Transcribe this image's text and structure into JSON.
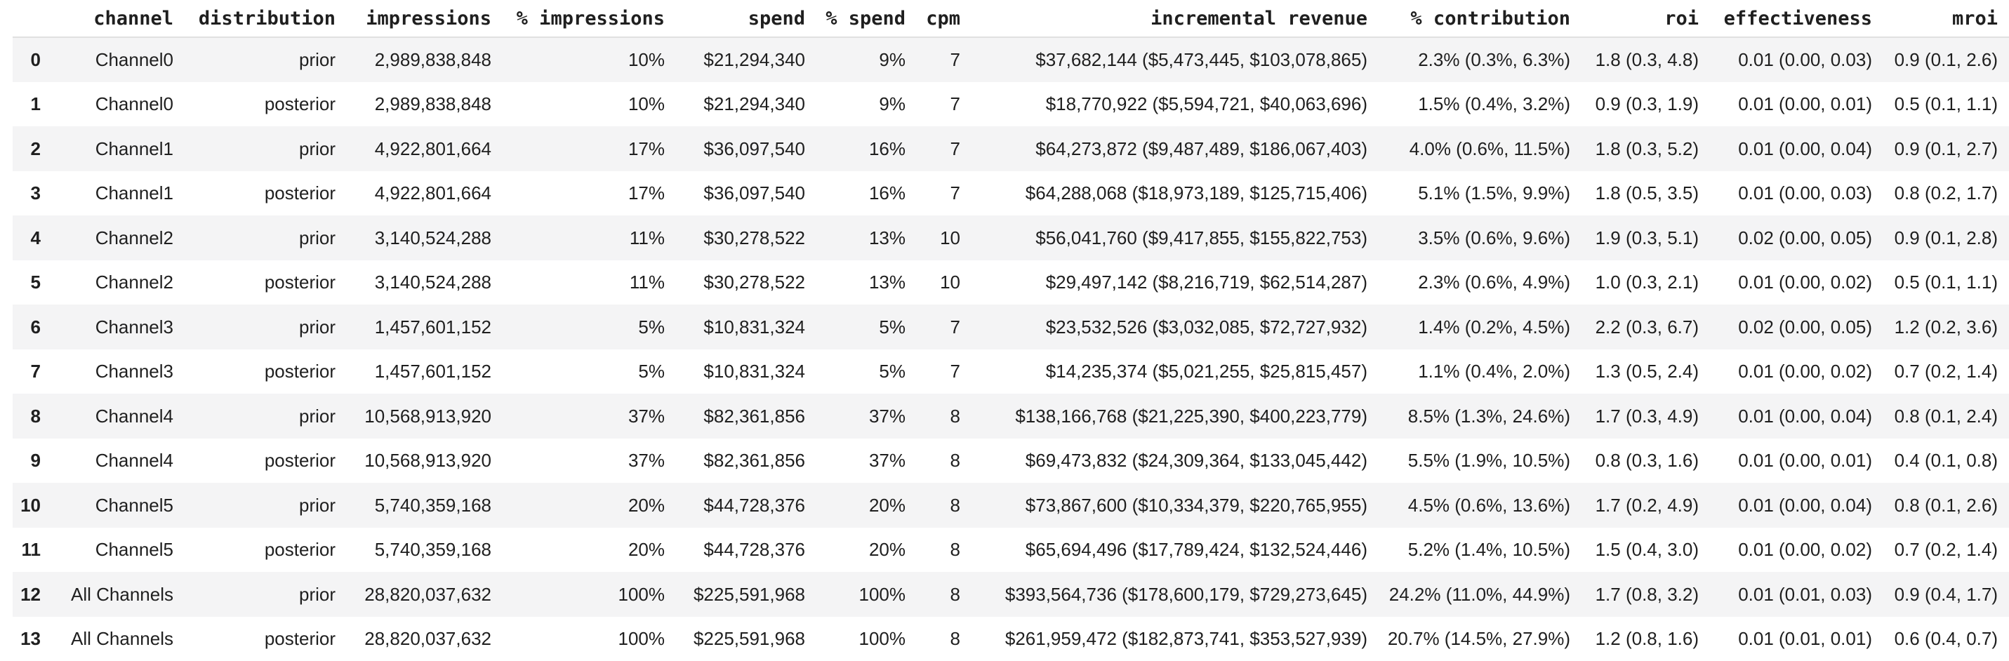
{
  "colors": {
    "background": "#ffffff",
    "stripe": "#f4f4f5",
    "border": "#e0e0e0",
    "text": "#1f1f1f"
  },
  "chart_data": {
    "type": "table",
    "title": "",
    "columns": [
      "",
      "channel",
      "distribution",
      "impressions",
      "% impressions",
      "spend",
      "% spend",
      "cpm",
      "incremental revenue",
      "% contribution",
      "roi",
      "effectiveness",
      "mroi"
    ],
    "rows": [
      [
        "0",
        "Channel0",
        "prior",
        "2,989,838,848",
        "10%",
        "$21,294,340",
        "9%",
        "7",
        "$37,682,144 ($5,473,445, $103,078,865)",
        "2.3% (0.3%, 6.3%)",
        "1.8 (0.3, 4.8)",
        "0.01 (0.00, 0.03)",
        "0.9 (0.1, 2.6)"
      ],
      [
        "1",
        "Channel0",
        "posterior",
        "2,989,838,848",
        "10%",
        "$21,294,340",
        "9%",
        "7",
        "$18,770,922 ($5,594,721, $40,063,696)",
        "1.5% (0.4%, 3.2%)",
        "0.9 (0.3, 1.9)",
        "0.01 (0.00, 0.01)",
        "0.5 (0.1, 1.1)"
      ],
      [
        "2",
        "Channel1",
        "prior",
        "4,922,801,664",
        "17%",
        "$36,097,540",
        "16%",
        "7",
        "$64,273,872 ($9,487,489, $186,067,403)",
        "4.0% (0.6%, 11.5%)",
        "1.8 (0.3, 5.2)",
        "0.01 (0.00, 0.04)",
        "0.9 (0.1, 2.7)"
      ],
      [
        "3",
        "Channel1",
        "posterior",
        "4,922,801,664",
        "17%",
        "$36,097,540",
        "16%",
        "7",
        "$64,288,068 ($18,973,189, $125,715,406)",
        "5.1% (1.5%, 9.9%)",
        "1.8 (0.5, 3.5)",
        "0.01 (0.00, 0.03)",
        "0.8 (0.2, 1.7)"
      ],
      [
        "4",
        "Channel2",
        "prior",
        "3,140,524,288",
        "11%",
        "$30,278,522",
        "13%",
        "10",
        "$56,041,760 ($9,417,855, $155,822,753)",
        "3.5% (0.6%, 9.6%)",
        "1.9 (0.3, 5.1)",
        "0.02 (0.00, 0.05)",
        "0.9 (0.1, 2.8)"
      ],
      [
        "5",
        "Channel2",
        "posterior",
        "3,140,524,288",
        "11%",
        "$30,278,522",
        "13%",
        "10",
        "$29,497,142 ($8,216,719, $62,514,287)",
        "2.3% (0.6%, 4.9%)",
        "1.0 (0.3, 2.1)",
        "0.01 (0.00, 0.02)",
        "0.5 (0.1, 1.1)"
      ],
      [
        "6",
        "Channel3",
        "prior",
        "1,457,601,152",
        "5%",
        "$10,831,324",
        "5%",
        "7",
        "$23,532,526 ($3,032,085, $72,727,932)",
        "1.4% (0.2%, 4.5%)",
        "2.2 (0.3, 6.7)",
        "0.02 (0.00, 0.05)",
        "1.2 (0.2, 3.6)"
      ],
      [
        "7",
        "Channel3",
        "posterior",
        "1,457,601,152",
        "5%",
        "$10,831,324",
        "5%",
        "7",
        "$14,235,374 ($5,021,255, $25,815,457)",
        "1.1% (0.4%, 2.0%)",
        "1.3 (0.5, 2.4)",
        "0.01 (0.00, 0.02)",
        "0.7 (0.2, 1.4)"
      ],
      [
        "8",
        "Channel4",
        "prior",
        "10,568,913,920",
        "37%",
        "$82,361,856",
        "37%",
        "8",
        "$138,166,768 ($21,225,390, $400,223,779)",
        "8.5% (1.3%, 24.6%)",
        "1.7 (0.3, 4.9)",
        "0.01 (0.00, 0.04)",
        "0.8 (0.1, 2.4)"
      ],
      [
        "9",
        "Channel4",
        "posterior",
        "10,568,913,920",
        "37%",
        "$82,361,856",
        "37%",
        "8",
        "$69,473,832 ($24,309,364, $133,045,442)",
        "5.5% (1.9%, 10.5%)",
        "0.8 (0.3, 1.6)",
        "0.01 (0.00, 0.01)",
        "0.4 (0.1, 0.8)"
      ],
      [
        "10",
        "Channel5",
        "prior",
        "5,740,359,168",
        "20%",
        "$44,728,376",
        "20%",
        "8",
        "$73,867,600 ($10,334,379, $220,765,955)",
        "4.5% (0.6%, 13.6%)",
        "1.7 (0.2, 4.9)",
        "0.01 (0.00, 0.04)",
        "0.8 (0.1, 2.6)"
      ],
      [
        "11",
        "Channel5",
        "posterior",
        "5,740,359,168",
        "20%",
        "$44,728,376",
        "20%",
        "8",
        "$65,694,496 ($17,789,424, $132,524,446)",
        "5.2% (1.4%, 10.5%)",
        "1.5 (0.4, 3.0)",
        "0.01 (0.00, 0.02)",
        "0.7 (0.2, 1.4)"
      ],
      [
        "12",
        "All Channels",
        "prior",
        "28,820,037,632",
        "100%",
        "$225,591,968",
        "100%",
        "8",
        "$393,564,736 ($178,600,179, $729,273,645)",
        "24.2% (11.0%, 44.9%)",
        "1.7 (0.8, 3.2)",
        "0.01 (0.01, 0.03)",
        "0.9 (0.4, 1.7)"
      ],
      [
        "13",
        "All Channels",
        "posterior",
        "28,820,037,632",
        "100%",
        "$225,591,968",
        "100%",
        "8",
        "$261,959,472 ($182,873,741, $353,527,939)",
        "20.7% (14.5%, 27.9%)",
        "1.2 (0.8, 1.6)",
        "0.01 (0.01, 0.01)",
        "0.6 (0.4, 0.7)"
      ]
    ],
    "layout": {
      "row_striping": "even index rows shaded",
      "alignment": "all columns right-aligned",
      "header_divider": true
    }
  }
}
